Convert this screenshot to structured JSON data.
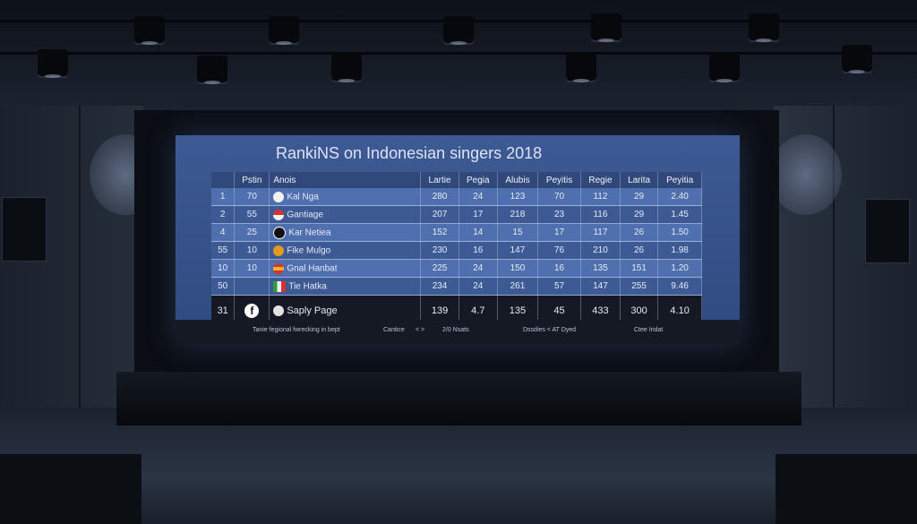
{
  "screen": {
    "title": "RankiNS on Indonesian singers 2018",
    "columns": [
      "",
      "Pstin",
      "Anois",
      "Lartie",
      "Pegia",
      "Alubis",
      "Peyitis",
      "Regie",
      "Larita",
      "Peyitia"
    ],
    "rows": [
      {
        "rank": "1",
        "pos": "70",
        "badge": "white",
        "name": "Kal Nga",
        "v": [
          "280",
          "24",
          "123",
          "70",
          "112",
          "29",
          "2.40"
        ]
      },
      {
        "rank": "2",
        "pos": "55",
        "badge": "red-white",
        "name": "Gantiage",
        "v": [
          "207",
          "17",
          "218",
          "23",
          "116",
          "29",
          "1.45"
        ]
      },
      {
        "rank": "4",
        "pos": "25",
        "badge": "black-white",
        "name": "Kar Netiea",
        "v": [
          "152",
          "14",
          "15",
          "17",
          "117",
          "26",
          "1.50"
        ]
      },
      {
        "rank": "55",
        "pos": "10",
        "badge": "orange",
        "name": "Fike Mulgo",
        "v": [
          "230",
          "16",
          "147",
          "76",
          "210",
          "26",
          "1.98"
        ]
      },
      {
        "rank": "10",
        "pos": "10",
        "badge": "red-yellow",
        "name": "Gnal Hanbat",
        "v": [
          "225",
          "24",
          "150",
          "16",
          "135",
          "151",
          "1.20"
        ]
      },
      {
        "rank": "50",
        "pos": "",
        "badge": "flag",
        "name": "Tie Hatka",
        "v": [
          "234",
          "24",
          "261",
          "57",
          "147",
          "255",
          "9.46"
        ]
      }
    ],
    "summary": {
      "rank": "31",
      "name": "Saply Page",
      "v": [
        "139",
        "4.7",
        "135",
        "45",
        "433",
        "300",
        "4.10"
      ]
    },
    "footer": {
      "left": "Tanie fegional fwrecking in bept",
      "mid1": "Cantice",
      "mid1b": "< >",
      "mid2": "2/0 Nsats",
      "mid3": "Dssdies < AT Dyed",
      "right": "Ctee Iridat"
    }
  },
  "colors": {
    "screen": "#3e5a94",
    "row_light": "#4f6fae",
    "row_dark": "#3d5a95",
    "room": "#141a24"
  }
}
